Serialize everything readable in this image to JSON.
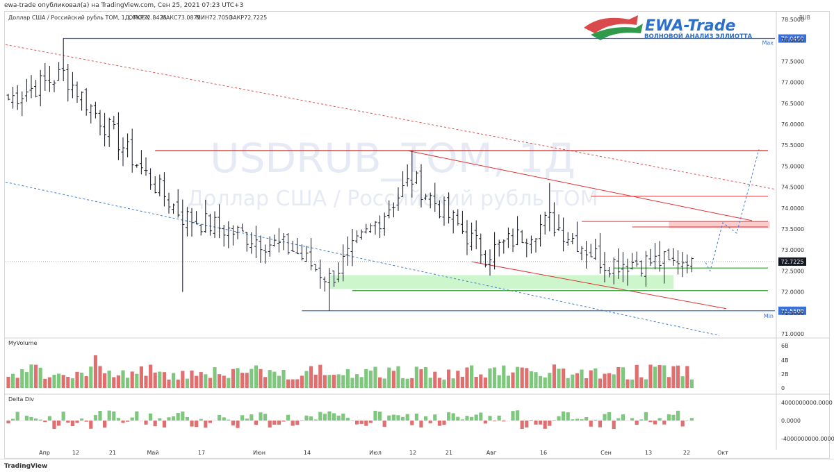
{
  "header": {
    "publisher_line": "ewa-trade опубликовал(а) на TradingView.com, Сен 25, 2021 07:23 UTC+3"
  },
  "symbol_info": {
    "name": "Доллар США / Российский рубль ТОМ, 1Д, MOEX",
    "open": "ОТКР72.8425",
    "high": "МАКС73.0875",
    "low": "МИН72.7050",
    "close": "ЗАКР72.7225"
  },
  "currency_label": "RUB",
  "watermark": {
    "ticker": "USDRUB_TOM, 1Д",
    "description": "Доллар США / Российский рубль ТОМ"
  },
  "logo": {
    "name": "EWA-Trade",
    "tagline": "ВОЛНОВОЙ АНАЛИЗ ЭЛЛИОТТА"
  },
  "colors": {
    "up": "#7fc77f",
    "down": "#e07070",
    "resistance": "#e03030",
    "support_green": "#2aa02a",
    "channel_blue": "#3a6fd8",
    "zone_green": "#c8f5c8",
    "zone_red": "#f8c8c8"
  },
  "chart_data": {
    "type": "ohlc",
    "price_axis": {
      "ticks": [
        "78.5000",
        "78.0000",
        "77.5000",
        "77.0000",
        "76.5000",
        "76.0000",
        "75.5000",
        "75.0000",
        "74.5000",
        "74.0000",
        "73.5000",
        "73.0000",
        "72.5000",
        "72.0000",
        "71.5000",
        "71.0000"
      ],
      "ylim": [
        70.95,
        78.6
      ]
    },
    "time_axis": {
      "labels": [
        "Апр",
        "12",
        "21",
        "Май",
        "17",
        "Июн",
        "14",
        "Июл",
        "12",
        "21",
        "Авг",
        "16",
        "Сен",
        "13",
        "22",
        "Окт"
      ]
    },
    "levels": [
      {
        "name": "Max",
        "value": 78.045,
        "label": "78.0450",
        "color": "#3a6fd8"
      },
      {
        "name": "Min",
        "value": 71.55,
        "label": "71.5500",
        "color": "#3a6fd8"
      },
      {
        "name": "",
        "value": 72.7225,
        "label": "72.7225",
        "color": "#131722"
      }
    ],
    "resistance_lines": [
      75.37,
      74.28,
      73.68,
      73.55
    ],
    "support_lines": [
      72.57,
      72.03
    ],
    "current_price": 72.7225,
    "ohlc_key_points": [
      {
        "bar": 0,
        "close": 76.6
      },
      {
        "bar": 12,
        "high": 78.05,
        "close": 77.2
      },
      {
        "bar": 30,
        "close": 74.8
      },
      {
        "bar": 38,
        "low": 72.0,
        "close": 73.8
      },
      {
        "bar": 62,
        "close": 73.0
      },
      {
        "bar": 70,
        "low": 71.55,
        "close": 72.3
      },
      {
        "bar": 88,
        "high": 75.37,
        "close": 74.7
      },
      {
        "bar": 104,
        "close": 72.9
      },
      {
        "bar": 118,
        "high": 74.6,
        "close": 73.7
      },
      {
        "bar": 130,
        "close": 72.7
      },
      {
        "bar": 143,
        "low": 72.2,
        "close": 72.7225
      }
    ],
    "volume_panel": {
      "title": "MyVolume",
      "ticks": [
        "6B",
        "4B",
        "2B",
        "0"
      ]
    },
    "delta_panel": {
      "title": "Delta Div",
      "ticks": [
        "4000000000.0000",
        "0.0000",
        "-4000000000.0000"
      ]
    }
  },
  "footer": {
    "brand": "TradingView"
  }
}
